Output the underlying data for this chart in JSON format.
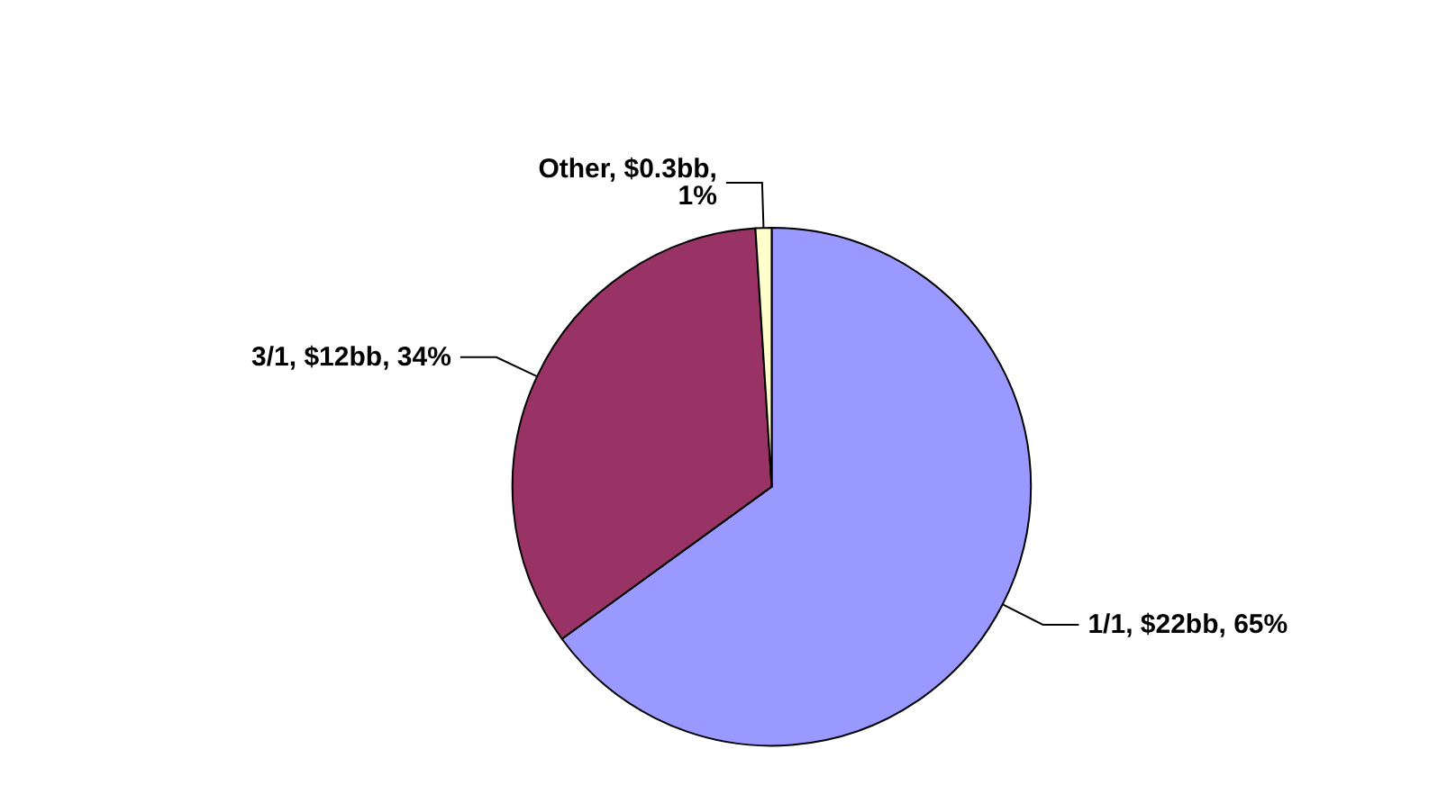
{
  "chart_data": {
    "type": "pie",
    "categories": [
      "1/1",
      "3/1",
      "Other"
    ],
    "values": [
      65,
      34,
      1
    ],
    "value_labels": [
      "$22bb, 65%",
      "$12bb, 34%",
      "$0.3bb,\n1%"
    ],
    "colors": [
      "#9999ff",
      "#993366",
      "#ffffcc"
    ],
    "legend": false
  }
}
